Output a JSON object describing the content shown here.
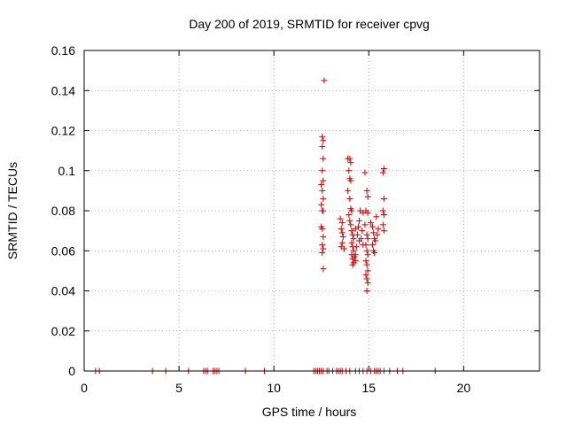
{
  "chart_data": {
    "type": "scatter",
    "title": "Day 200 of 2019, SRMTID for receiver cpvg",
    "xlabel": "GPS time / hours",
    "ylabel": "SRMTID / TECUs",
    "xlim": [
      0,
      24
    ],
    "ylim": [
      0,
      0.16
    ],
    "xticks": [
      0,
      5,
      10,
      15,
      20
    ],
    "yticks": [
      0,
      0.02,
      0.04,
      0.06,
      0.08,
      0.1,
      0.12,
      0.14,
      0.16
    ],
    "xtick_labels": [
      "0",
      "5",
      "10",
      "15",
      "20"
    ],
    "ytick_labels": [
      "0",
      "0.02",
      "0.04",
      "0.06",
      "0.08",
      "0.1",
      "0.12",
      "0.14",
      "0.16"
    ],
    "grid": true,
    "marker": "+",
    "marker_color": "#cc0000",
    "series": [
      {
        "name": "SRMTID",
        "points": [
          [
            0.6,
            0
          ],
          [
            0.8,
            0
          ],
          [
            3.6,
            0
          ],
          [
            4.3,
            0
          ],
          [
            5.5,
            0
          ],
          [
            6.3,
            0
          ],
          [
            6.4,
            0
          ],
          [
            6.5,
            0
          ],
          [
            6.8,
            0
          ],
          [
            6.9,
            0
          ],
          [
            7.0,
            0
          ],
          [
            7.1,
            0
          ],
          [
            8.5,
            0
          ],
          [
            9.5,
            0
          ],
          [
            12.1,
            0
          ],
          [
            12.2,
            0
          ],
          [
            12.3,
            0
          ],
          [
            12.4,
            0
          ],
          [
            12.5,
            0
          ],
          [
            12.6,
            0
          ],
          [
            12.8,
            0
          ],
          [
            12.9,
            0
          ],
          [
            13.1,
            0
          ],
          [
            13.3,
            0
          ],
          [
            13.4,
            0
          ],
          [
            13.5,
            0
          ],
          [
            13.6,
            0
          ],
          [
            13.8,
            0
          ],
          [
            14.0,
            0
          ],
          [
            14.3,
            0
          ],
          [
            14.5,
            0
          ],
          [
            14.7,
            0
          ],
          [
            14.9,
            0
          ],
          [
            15.1,
            0
          ],
          [
            15.3,
            0
          ],
          [
            15.4,
            0
          ],
          [
            15.5,
            0
          ],
          [
            15.6,
            0
          ],
          [
            15.8,
            0
          ],
          [
            16.1,
            0
          ],
          [
            16.5,
            0
          ],
          [
            16.8,
            0
          ],
          [
            18.5,
            0
          ],
          [
            12.65,
            0.145
          ],
          [
            12.55,
            0.117
          ],
          [
            12.6,
            0.115
          ],
          [
            12.55,
            0.112
          ],
          [
            12.6,
            0.106
          ],
          [
            12.55,
            0.1
          ],
          [
            12.6,
            0.095
          ],
          [
            12.5,
            0.093
          ],
          [
            12.55,
            0.09
          ],
          [
            12.6,
            0.086
          ],
          [
            12.5,
            0.083
          ],
          [
            12.55,
            0.08
          ],
          [
            12.6,
            0.08
          ],
          [
            12.5,
            0.072
          ],
          [
            12.55,
            0.071
          ],
          [
            12.6,
            0.067
          ],
          [
            12.55,
            0.063
          ],
          [
            12.6,
            0.061
          ],
          [
            12.55,
            0.059
          ],
          [
            12.6,
            0.051
          ],
          [
            13.5,
            0.076
          ],
          [
            13.6,
            0.074
          ],
          [
            13.55,
            0.071
          ],
          [
            13.6,
            0.069
          ],
          [
            13.65,
            0.067
          ],
          [
            13.6,
            0.064
          ],
          [
            13.55,
            0.062
          ],
          [
            13.7,
            0.061
          ],
          [
            13.9,
            0.106
          ],
          [
            14.0,
            0.106
          ],
          [
            14.05,
            0.104
          ],
          [
            13.95,
            0.1
          ],
          [
            14.0,
            0.096
          ],
          [
            14.05,
            0.095
          ],
          [
            13.9,
            0.09
          ],
          [
            14.0,
            0.086
          ],
          [
            14.05,
            0.081
          ],
          [
            14.1,
            0.08
          ],
          [
            13.95,
            0.078
          ],
          [
            14.0,
            0.075
          ],
          [
            14.05,
            0.073
          ],
          [
            14.1,
            0.07
          ],
          [
            14.15,
            0.068
          ],
          [
            14.2,
            0.066
          ],
          [
            14.1,
            0.064
          ],
          [
            14.15,
            0.062
          ],
          [
            14.2,
            0.06
          ],
          [
            14.1,
            0.058
          ],
          [
            14.25,
            0.057
          ],
          [
            14.15,
            0.056
          ],
          [
            14.3,
            0.055
          ],
          [
            14.2,
            0.054
          ],
          [
            14.15,
            0.053
          ],
          [
            14.3,
            0.058
          ],
          [
            14.35,
            0.062
          ],
          [
            14.3,
            0.071
          ],
          [
            14.4,
            0.068
          ],
          [
            14.5,
            0.065
          ],
          [
            14.45,
            0.072
          ],
          [
            14.5,
            0.075
          ],
          [
            14.55,
            0.08
          ],
          [
            14.7,
            0.079
          ],
          [
            14.65,
            0.07
          ],
          [
            14.6,
            0.066
          ],
          [
            14.7,
            0.063
          ],
          [
            14.8,
            0.099
          ],
          [
            14.9,
            0.09
          ],
          [
            14.95,
            0.087
          ],
          [
            14.85,
            0.08
          ],
          [
            14.95,
            0.079
          ],
          [
            14.8,
            0.073
          ],
          [
            14.9,
            0.068
          ],
          [
            14.95,
            0.066
          ],
          [
            14.85,
            0.063
          ],
          [
            14.9,
            0.06
          ],
          [
            14.95,
            0.058
          ],
          [
            14.85,
            0.055
          ],
          [
            14.9,
            0.053
          ],
          [
            14.95,
            0.05
          ],
          [
            14.85,
            0.048
          ],
          [
            14.9,
            0.046
          ],
          [
            14.95,
            0.044
          ],
          [
            14.9,
            0.04
          ],
          [
            15.1,
            0.074
          ],
          [
            15.2,
            0.072
          ],
          [
            15.25,
            0.069
          ],
          [
            15.3,
            0.066
          ],
          [
            15.2,
            0.063
          ],
          [
            15.25,
            0.06
          ],
          [
            15.3,
            0.059
          ],
          [
            15.4,
            0.077
          ],
          [
            15.5,
            0.071
          ],
          [
            15.45,
            0.068
          ],
          [
            15.35,
            0.065
          ],
          [
            15.8,
            0.101
          ],
          [
            15.75,
            0.099
          ],
          [
            15.8,
            0.086
          ],
          [
            15.75,
            0.08
          ],
          [
            15.8,
            0.078
          ],
          [
            15.75,
            0.073
          ],
          [
            15.8,
            0.07
          ]
        ]
      }
    ]
  }
}
